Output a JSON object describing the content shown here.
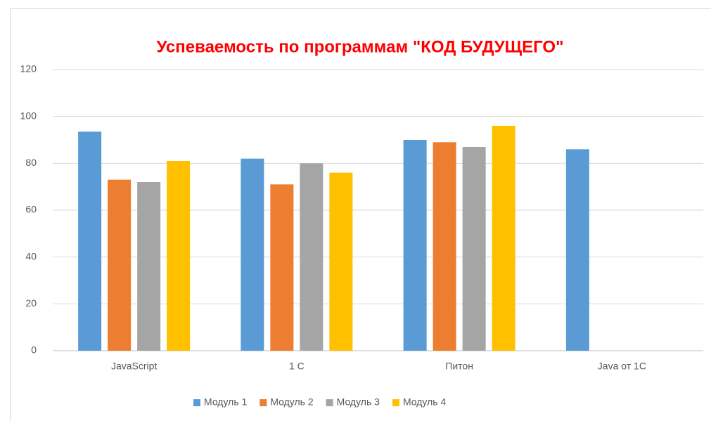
{
  "chart_data": {
    "type": "bar",
    "title": "Успеваемость по программам \"КОД БУДУЩЕГО\"",
    "categories": [
      "JavaScript",
      "1 С",
      "Питон",
      "Java от 1С"
    ],
    "series": [
      {
        "name": "Модуль 1",
        "color": "#5b9bd5",
        "values": [
          93.5,
          82,
          90,
          86
        ]
      },
      {
        "name": "Модуль 2",
        "color": "#ed7d31",
        "values": [
          73,
          71,
          89,
          null
        ]
      },
      {
        "name": "Модуль 3",
        "color": "#a5a5a5",
        "values": [
          72,
          80,
          87,
          null
        ]
      },
      {
        "name": "Модуль 4",
        "color": "#ffc000",
        "values": [
          81,
          76,
          96,
          null
        ]
      }
    ],
    "ylim": [
      0,
      120
    ],
    "yticks": [
      0,
      20,
      40,
      60,
      80,
      100,
      120
    ],
    "grid": true,
    "legend": "bottom"
  }
}
